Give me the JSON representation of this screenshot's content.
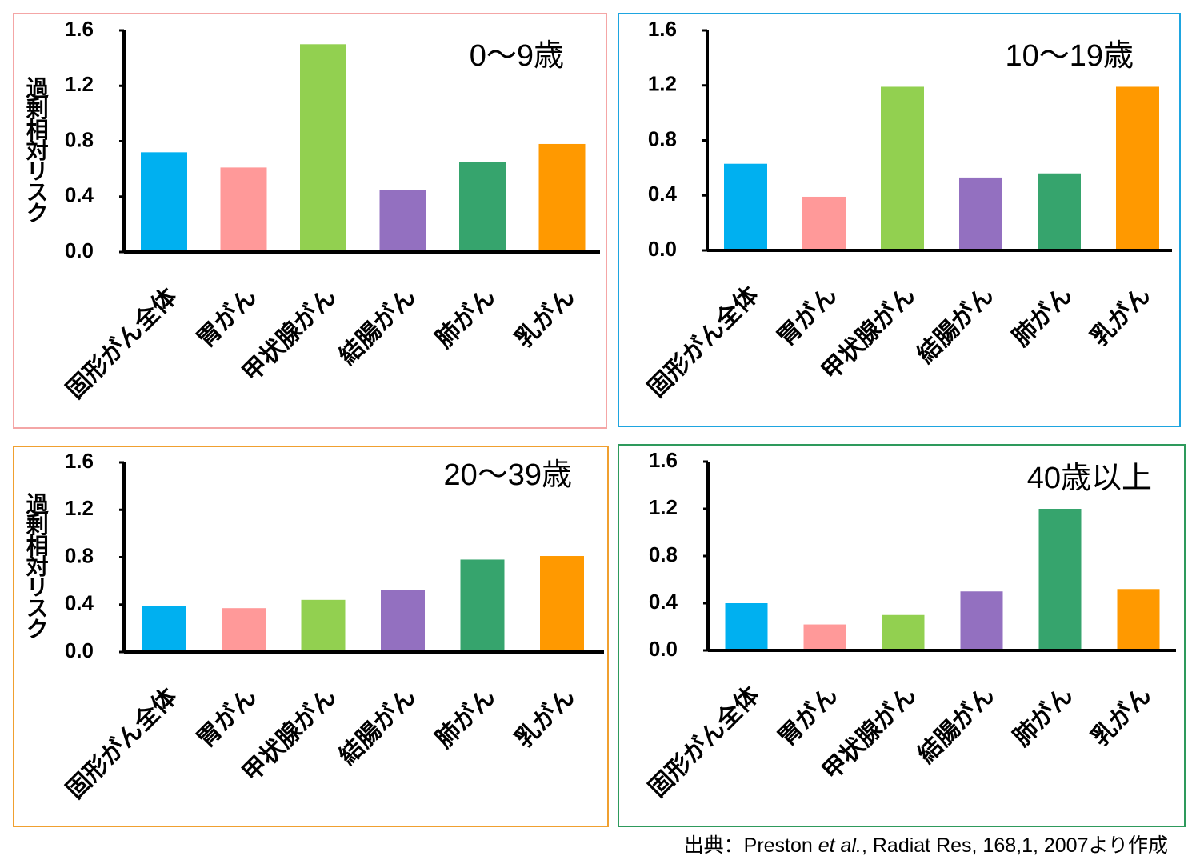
{
  "chart_data": [
    {
      "type": "bar",
      "title": "0～9歳",
      "ylabel": "過剰相対リスク",
      "categories": [
        "固形がん全体",
        "胃がん",
        "甲状腺がん",
        "結腸がん",
        "肺がん",
        "乳がん"
      ],
      "values": [
        0.72,
        0.61,
        1.5,
        0.45,
        0.65,
        0.78
      ],
      "colors": [
        "#00b0f0",
        "#ff9999",
        "#92d050",
        "#9370c0",
        "#36a46d",
        "#ff9900"
      ],
      "frame_color": "#f4a6a6",
      "ylim": [
        0,
        1.6
      ],
      "yticks": [
        {
          "value": 0,
          "label": "0.0"
        },
        0.4,
        0.8,
        1.2,
        1.6
      ]
    },
    {
      "type": "bar",
      "title": "10～19歳",
      "categories": [
        "固形がん全体",
        "胃がん",
        "甲状腺がん",
        "結腸がん",
        "肺がん",
        "乳がん"
      ],
      "values": [
        0.63,
        0.39,
        1.19,
        0.53,
        0.56,
        1.19
      ],
      "colors": [
        "#00b0f0",
        "#ff9999",
        "#92d050",
        "#9370c0",
        "#36a46d",
        "#ff9900"
      ],
      "frame_color": "#1ea5e0",
      "ylim": [
        0,
        1.6
      ],
      "yticks": [
        {
          "value": 0,
          "label": "0.0"
        },
        0.4,
        0.8,
        1.2,
        1.6
      ]
    },
    {
      "type": "bar",
      "title": "20～39歳",
      "ylabel": "過剰相対リスク",
      "categories": [
        "固形がん全体",
        "胃がん",
        "甲状腺がん",
        "結腸がん",
        "肺がん",
        "乳がん"
      ],
      "values": [
        0.39,
        0.37,
        0.44,
        0.52,
        0.78,
        0.81
      ],
      "colors": [
        "#00b0f0",
        "#ff9999",
        "#92d050",
        "#9370c0",
        "#36a46d",
        "#ff9900"
      ],
      "frame_color": "#f0a030",
      "ylim": [
        0,
        1.6
      ],
      "yticks": [
        {
          "value": 0,
          "label": "0.0"
        },
        0.4,
        0.8,
        1.2,
        1.6
      ]
    },
    {
      "type": "bar",
      "title": "40歳以上",
      "categories": [
        "固形がん全体",
        "胃がん",
        "甲状腺がん",
        "結腸がん",
        "肺がん",
        "乳がん"
      ],
      "values": [
        0.4,
        0.22,
        0.3,
        0.5,
        1.2,
        0.52
      ],
      "colors": [
        "#00b0f0",
        "#ff9999",
        "#92d050",
        "#9370c0",
        "#36a46d",
        "#ff9900"
      ],
      "frame_color": "#2e9a5c",
      "ylim": [
        0,
        1.6
      ],
      "yticks": [
        {
          "value": 0,
          "label": "0.0"
        },
        0.4,
        0.8,
        1.2,
        1.6
      ]
    }
  ],
  "source": [
    "出典：Preston ",
    "et al.",
    ", Radiat Res, 168,1, 2007より作成"
  ]
}
